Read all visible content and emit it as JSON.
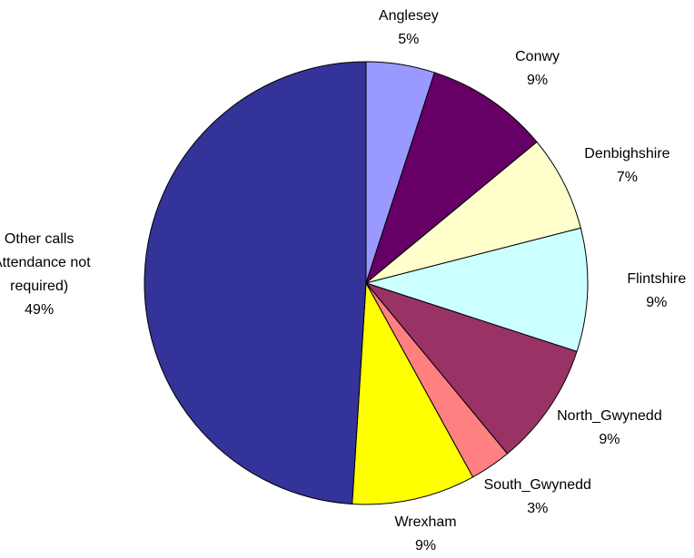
{
  "chart_data": {
    "type": "pie",
    "categories": [
      "Anglesey",
      "Conwy",
      "Denbighshire",
      "Flintshire",
      "North_Gwynedd",
      "South_Gwynedd",
      "Wrexham",
      "Other calls (Attendance not required)"
    ],
    "values": [
      5,
      9,
      7,
      9,
      9,
      3,
      9,
      49
    ],
    "value_labels": [
      "5%",
      "9%",
      "7%",
      "9%",
      "9%",
      "3%",
      "9%",
      "49%"
    ],
    "colors": [
      "#9999ff",
      "#660066",
      "#ffffcc",
      "#ccffff",
      "#993366",
      "#ff8080",
      "#ffff00",
      "#333399"
    ]
  }
}
